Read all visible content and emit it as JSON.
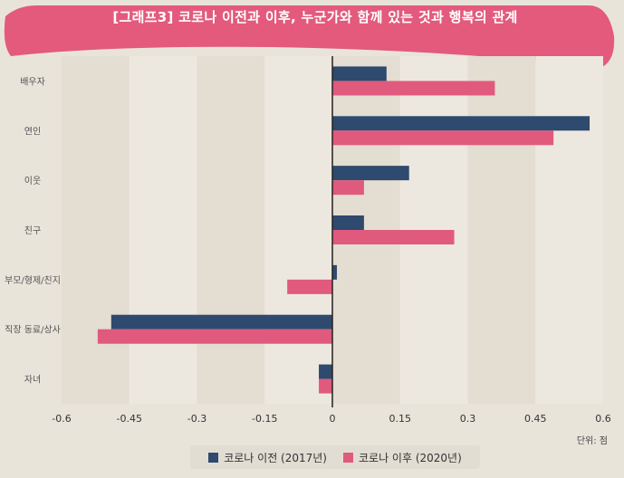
{
  "chart_data": {
    "type": "bar",
    "orientation": "horizontal",
    "title": "[그래프3] 코로나 이전과 이후, 누군가와 함께 있는 것과 행복의 관계",
    "unit_label": "단위: 점",
    "categories": [
      "배우자",
      "연인",
      "이웃",
      "친구",
      "부모/형제/친지",
      "직장 동료/상사",
      "자녀"
    ],
    "series": [
      {
        "name": "코로나 이전 (2017년)",
        "color": "#2e4a6e",
        "values": [
          0.12,
          0.57,
          0.17,
          0.07,
          0.01,
          -0.49,
          -0.03
        ]
      },
      {
        "name": "코로나 이후 (2020년)",
        "color": "#e05a7e",
        "values": [
          0.36,
          0.49,
          0.07,
          0.27,
          -0.1,
          -0.52,
          -0.03
        ]
      }
    ],
    "xlim": [
      -0.6,
      0.6
    ],
    "xticks": [
      "-0.6",
      "-0.45",
      "-0.3",
      "-0.15",
      "0",
      "0.15",
      "0.3",
      "0.45",
      "0.6"
    ],
    "legend_position": "bottom-center",
    "grid": "alternating vertical bands"
  }
}
